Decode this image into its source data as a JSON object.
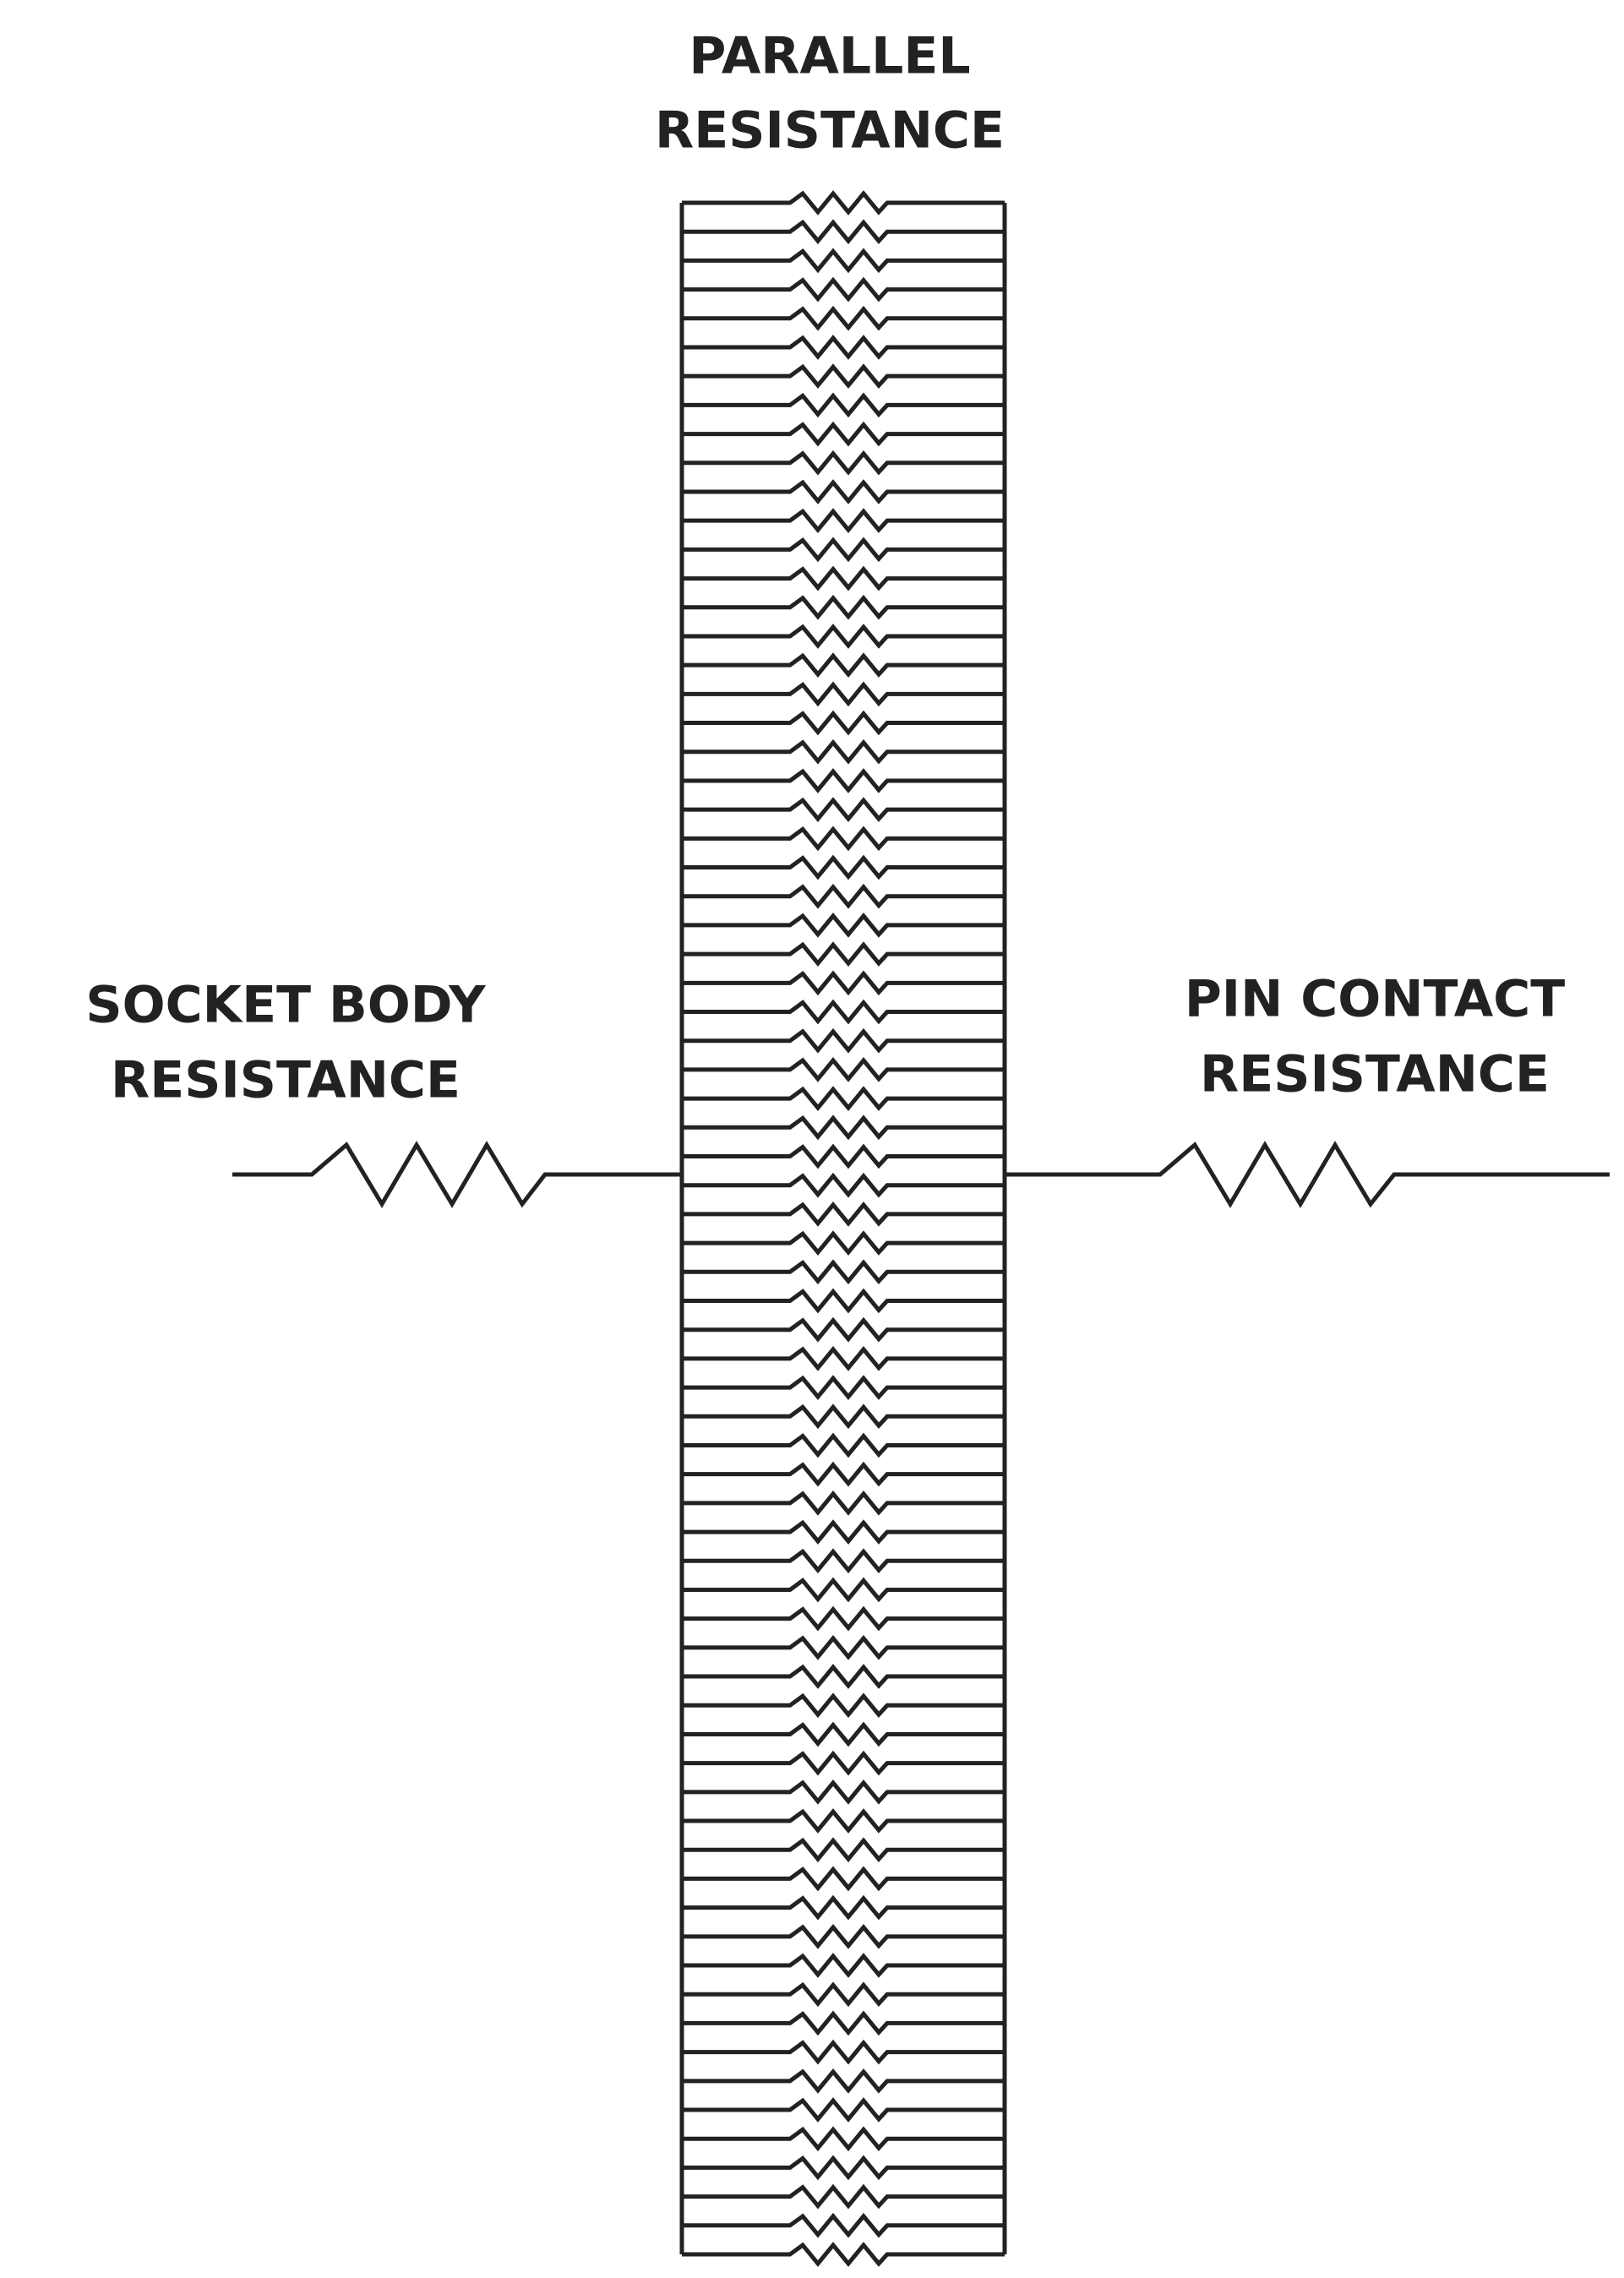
{
  "labels": {
    "parallel": [
      "PARALLEL",
      "RESISTANCE"
    ],
    "socket_body": [
      "SOCKET BODY",
      "RESISTANCE"
    ],
    "pin_contact": [
      "PIN CONTACT",
      "RESISTANCE"
    ]
  }
}
